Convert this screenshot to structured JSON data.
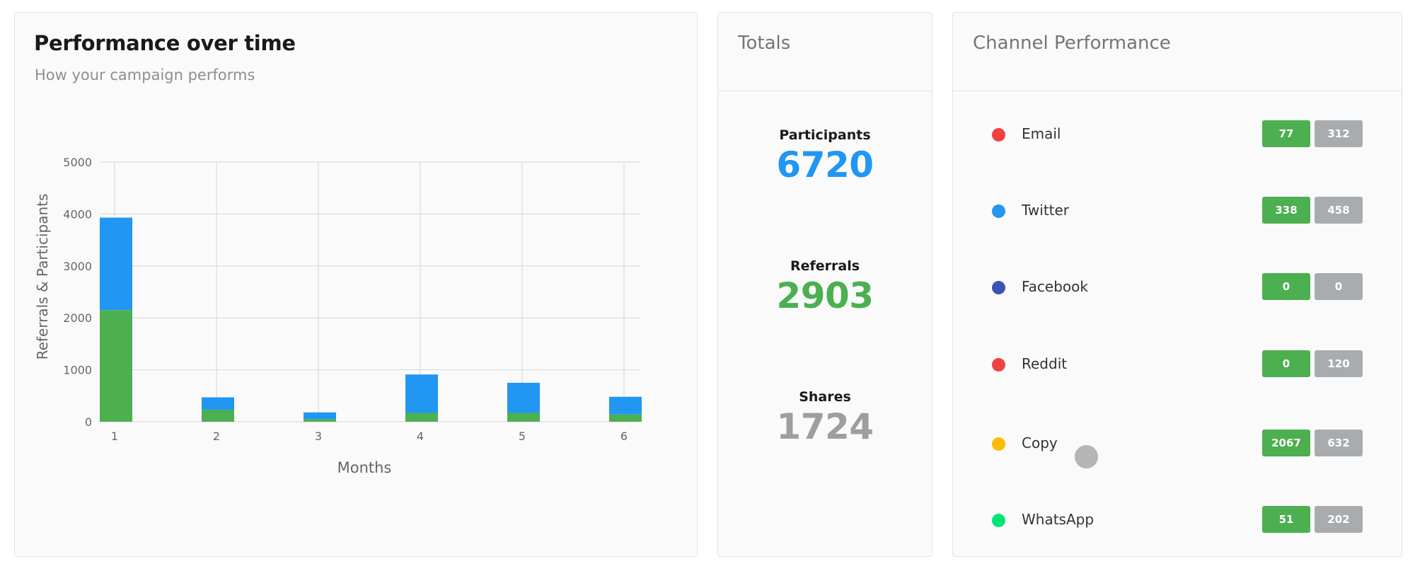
{
  "performance": {
    "title": "Performance over time",
    "subtitle": "How your campaign performs"
  },
  "chart_data": {
    "type": "bar",
    "stacked": true,
    "categories": [
      "1",
      "2",
      "3",
      "4",
      "5",
      "6"
    ],
    "series": [
      {
        "color": "#4caf50",
        "values": [
          2150,
          230,
          50,
          170,
          170,
          140
        ]
      },
      {
        "color": "#2196f3",
        "values": [
          1780,
          240,
          130,
          740,
          580,
          340
        ]
      }
    ],
    "xlabel": "Months",
    "ylabel": "Referrals & Participants",
    "ylim": [
      0,
      5000
    ],
    "yticks": [
      0,
      1000,
      2000,
      3000,
      4000,
      5000
    ],
    "grid": true,
    "legend": "none"
  },
  "totals": {
    "title": "Totals",
    "participants": {
      "label": "Participants",
      "value": "6720",
      "color": "#2196f3"
    },
    "referrals": {
      "label": "Referrals",
      "value": "2903",
      "color": "#4caf50"
    },
    "shares": {
      "label": "Shares",
      "value": "1724",
      "color": "#9e9e9e"
    }
  },
  "channels": {
    "title": "Channel Performance",
    "items": [
      {
        "name": "Email",
        "color": "#f04141",
        "referrals": "77",
        "shares": "312"
      },
      {
        "name": "Twitter",
        "color": "#2196f3",
        "referrals": "338",
        "shares": "458"
      },
      {
        "name": "Facebook",
        "color": "#3f51b5",
        "referrals": "0",
        "shares": "0"
      },
      {
        "name": "Reddit",
        "color": "#f04141",
        "referrals": "0",
        "shares": "120"
      },
      {
        "name": "Copy",
        "color": "#fbbc05",
        "referrals": "2067",
        "shares": "632"
      },
      {
        "name": "WhatsApp",
        "color": "#00e676",
        "referrals": "51",
        "shares": "202"
      }
    ]
  }
}
